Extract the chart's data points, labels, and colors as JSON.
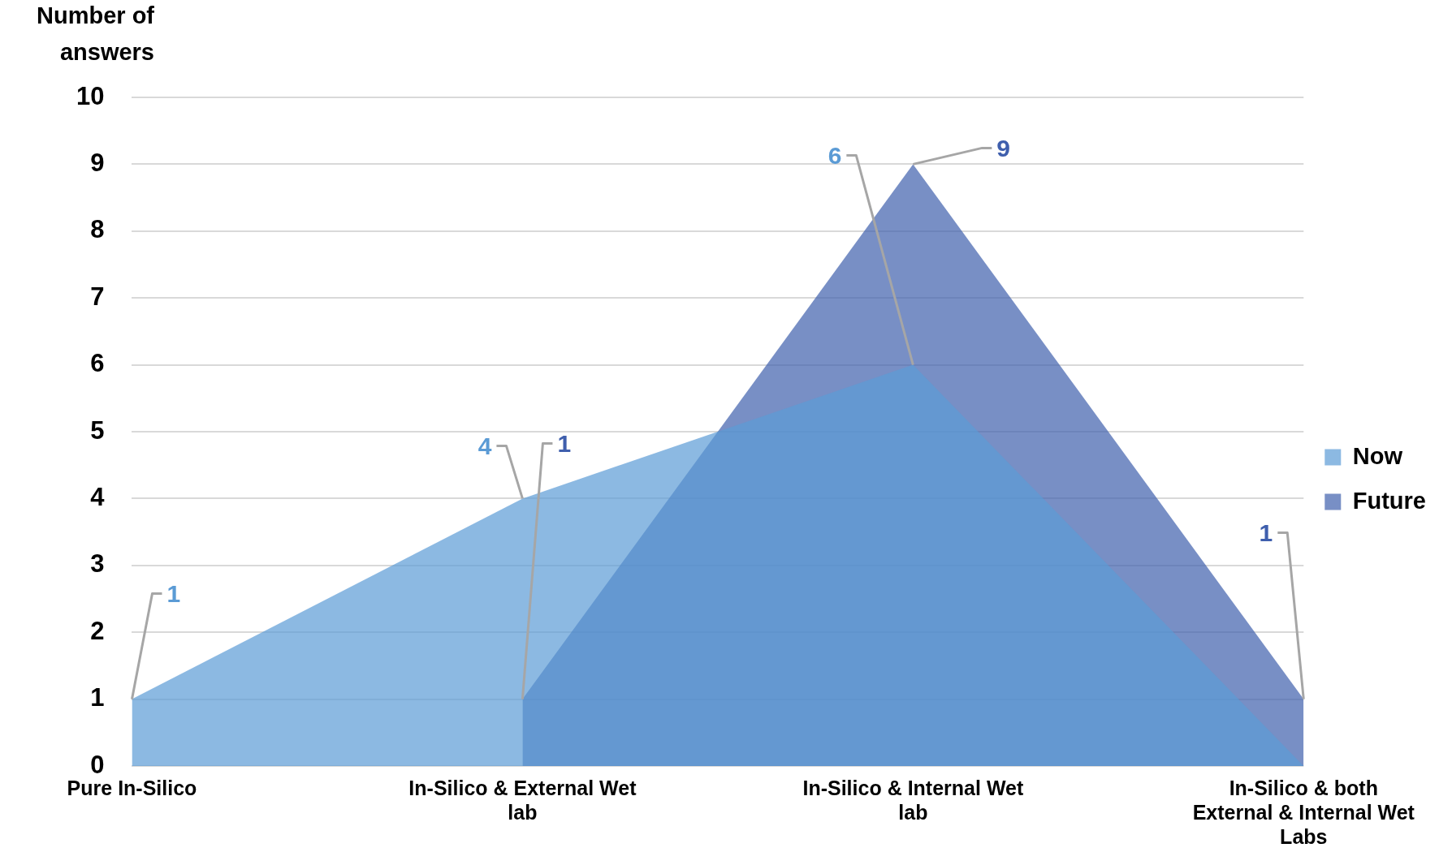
{
  "chart_data": {
    "type": "area",
    "ylabel": "Number of answers",
    "categories": [
      "Pure In-Silico",
      "In-Silico & External Wet lab",
      "In-Silico & Internal Wet lab",
      "In-Silico & both External & Internal Wet Labs"
    ],
    "series": [
      {
        "name": "Now",
        "color": "#5b9bd5",
        "values": [
          1,
          4,
          6,
          0
        ],
        "value_labels": [
          "1",
          "4",
          "6",
          null
        ]
      },
      {
        "name": "Future",
        "color": "#3f5fad",
        "values": [
          null,
          1,
          9,
          1
        ],
        "value_labels": [
          null,
          "1",
          "9",
          "1"
        ]
      }
    ],
    "ylim": [
      0,
      10
    ],
    "yticks": [
      0,
      1,
      2,
      3,
      4,
      5,
      6,
      7,
      8,
      9,
      10
    ],
    "grid": "y",
    "legend": "right"
  }
}
